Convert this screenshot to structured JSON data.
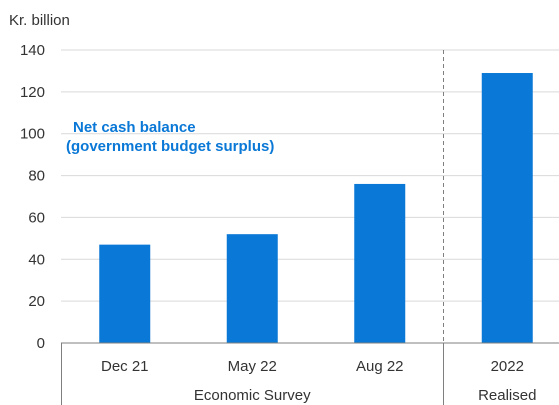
{
  "chart_data": {
    "type": "bar",
    "unit_label": "Kr. billion",
    "categories": [
      "Dec 21",
      "May 22",
      "Aug 22",
      "2022"
    ],
    "values": [
      47,
      52,
      76,
      129
    ],
    "groups": [
      {
        "label": "Economic Survey",
        "categories": [
          "Dec 21",
          "May 22",
          "Aug 22"
        ]
      },
      {
        "label": "Realised",
        "categories": [
          "2022"
        ]
      }
    ],
    "annotation": [
      "Net cash balance",
      "(government budget surplus)"
    ],
    "ylim": [
      0,
      140
    ],
    "yticks": [
      0,
      20,
      40,
      60,
      80,
      100,
      120,
      140
    ],
    "grid": true,
    "bar_color": "#0A78D6",
    "grid_color": "#D9D9D9",
    "axis_color": "#7F7F7F",
    "divider_style": "dashed"
  }
}
